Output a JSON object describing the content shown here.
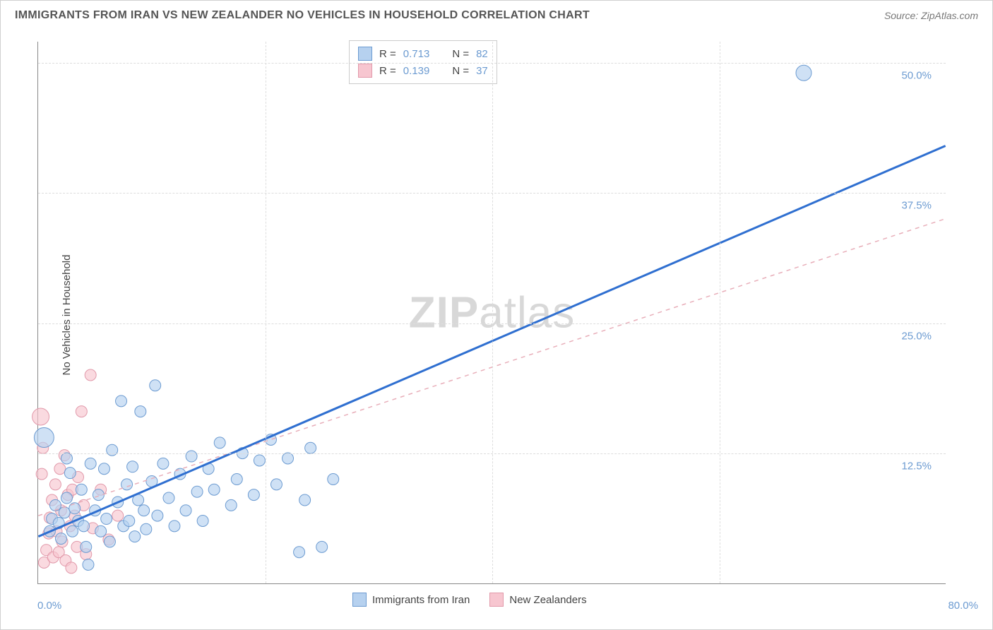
{
  "title": "IMMIGRANTS FROM IRAN VS NEW ZEALANDER NO VEHICLES IN HOUSEHOLD CORRELATION CHART",
  "source": "Source: ZipAtlas.com",
  "y_axis_label": "No Vehicles in Household",
  "watermark_a": "ZIP",
  "watermark_b": "atlas",
  "chart": {
    "type": "scatter",
    "background_color": "#ffffff",
    "grid_color": "#dddddd",
    "axis_color": "#888888",
    "xlim": [
      0,
      80
    ],
    "ylim": [
      0,
      52
    ],
    "x_origin_label": "0.0%",
    "x_max_label": "80.0%",
    "y_ticks": [
      {
        "v": 12.5,
        "label": "12.5%"
      },
      {
        "v": 25.0,
        "label": "25.0%"
      },
      {
        "v": 37.5,
        "label": "37.5%"
      },
      {
        "v": 50.0,
        "label": "50.0%"
      }
    ],
    "x_gridlines": [
      20,
      40,
      60
    ],
    "series_a": {
      "label": "Immigrants from Iran",
      "fill": "#b6d1ef",
      "stroke": "#6c9bd1",
      "line_color": "#2f6fd0",
      "line_width": 3,
      "line_style": "solid",
      "R": "0.713",
      "N": "82",
      "trend": {
        "x1": 0,
        "y1": 4.5,
        "x2": 80,
        "y2": 42.0
      },
      "points": [
        {
          "x": 67.5,
          "y": 49.0,
          "r": 11
        },
        {
          "x": 0.5,
          "y": 14.0,
          "r": 14
        },
        {
          "x": 1.0,
          "y": 5.0,
          "r": 8
        },
        {
          "x": 1.2,
          "y": 6.2,
          "r": 8
        },
        {
          "x": 1.5,
          "y": 7.5,
          "r": 8
        },
        {
          "x": 1.8,
          "y": 5.8,
          "r": 8
        },
        {
          "x": 2.0,
          "y": 4.3,
          "r": 8
        },
        {
          "x": 2.3,
          "y": 6.8,
          "r": 8
        },
        {
          "x": 2.5,
          "y": 8.2,
          "r": 8
        },
        {
          "x": 2.8,
          "y": 10.6,
          "r": 8
        },
        {
          "x": 2.5,
          "y": 12.0,
          "r": 8
        },
        {
          "x": 3.0,
          "y": 5.0,
          "r": 8
        },
        {
          "x": 3.2,
          "y": 7.2,
          "r": 8
        },
        {
          "x": 3.5,
          "y": 6.0,
          "r": 8
        },
        {
          "x": 3.8,
          "y": 9.0,
          "r": 8
        },
        {
          "x": 4.0,
          "y": 5.5,
          "r": 8
        },
        {
          "x": 4.2,
          "y": 3.5,
          "r": 8
        },
        {
          "x": 4.4,
          "y": 1.8,
          "r": 8
        },
        {
          "x": 4.6,
          "y": 11.5,
          "r": 8
        },
        {
          "x": 5.0,
          "y": 7.0,
          "r": 8
        },
        {
          "x": 5.3,
          "y": 8.5,
          "r": 8
        },
        {
          "x": 5.5,
          "y": 5.0,
          "r": 8
        },
        {
          "x": 5.8,
          "y": 11.0,
          "r": 8
        },
        {
          "x": 6.0,
          "y": 6.2,
          "r": 8
        },
        {
          "x": 6.3,
          "y": 4.0,
          "r": 8
        },
        {
          "x": 6.5,
          "y": 12.8,
          "r": 8
        },
        {
          "x": 7.0,
          "y": 7.8,
          "r": 8
        },
        {
          "x": 7.3,
          "y": 17.5,
          "r": 8
        },
        {
          "x": 7.5,
          "y": 5.5,
          "r": 8
        },
        {
          "x": 7.8,
          "y": 9.5,
          "r": 8
        },
        {
          "x": 8.0,
          "y": 6.0,
          "r": 8
        },
        {
          "x": 8.3,
          "y": 11.2,
          "r": 8
        },
        {
          "x": 8.5,
          "y": 4.5,
          "r": 8
        },
        {
          "x": 8.8,
          "y": 8.0,
          "r": 8
        },
        {
          "x": 9.0,
          "y": 16.5,
          "r": 8
        },
        {
          "x": 9.3,
          "y": 7.0,
          "r": 8
        },
        {
          "x": 9.5,
          "y": 5.2,
          "r": 8
        },
        {
          "x": 10.0,
          "y": 9.8,
          "r": 8
        },
        {
          "x": 10.3,
          "y": 19.0,
          "r": 8
        },
        {
          "x": 10.5,
          "y": 6.5,
          "r": 8
        },
        {
          "x": 11.0,
          "y": 11.5,
          "r": 8
        },
        {
          "x": 11.5,
          "y": 8.2,
          "r": 8
        },
        {
          "x": 12.0,
          "y": 5.5,
          "r": 8
        },
        {
          "x": 12.5,
          "y": 10.5,
          "r": 8
        },
        {
          "x": 13.0,
          "y": 7.0,
          "r": 8
        },
        {
          "x": 13.5,
          "y": 12.2,
          "r": 8
        },
        {
          "x": 14.0,
          "y": 8.8,
          "r": 8
        },
        {
          "x": 14.5,
          "y": 6.0,
          "r": 8
        },
        {
          "x": 15.0,
          "y": 11.0,
          "r": 8
        },
        {
          "x": 15.5,
          "y": 9.0,
          "r": 8
        },
        {
          "x": 16.0,
          "y": 13.5,
          "r": 8
        },
        {
          "x": 17.0,
          "y": 7.5,
          "r": 8
        },
        {
          "x": 17.5,
          "y": 10.0,
          "r": 8
        },
        {
          "x": 18.0,
          "y": 12.5,
          "r": 8
        },
        {
          "x": 19.0,
          "y": 8.5,
          "r": 8
        },
        {
          "x": 19.5,
          "y": 11.8,
          "r": 8
        },
        {
          "x": 20.5,
          "y": 13.8,
          "r": 8
        },
        {
          "x": 21.0,
          "y": 9.5,
          "r": 8
        },
        {
          "x": 22.0,
          "y": 12.0,
          "r": 8
        },
        {
          "x": 23.0,
          "y": 3.0,
          "r": 8
        },
        {
          "x": 23.5,
          "y": 8.0,
          "r": 8
        },
        {
          "x": 24.0,
          "y": 13.0,
          "r": 8
        },
        {
          "x": 25.0,
          "y": 3.5,
          "r": 8
        },
        {
          "x": 26.0,
          "y": 10.0,
          "r": 8
        }
      ]
    },
    "series_b": {
      "label": "New Zealanders",
      "fill": "#f7c6d0",
      "stroke": "#e199aa",
      "line_color": "#e8aeb9",
      "line_width": 1.5,
      "line_style": "dashed",
      "R": "0.139",
      "N": "37",
      "trend": {
        "x1": 0,
        "y1": 6.5,
        "x2": 80,
        "y2": 35.0
      },
      "points": [
        {
          "x": 0.2,
          "y": 16.0,
          "r": 12
        },
        {
          "x": 0.5,
          "y": 2.0,
          "r": 8
        },
        {
          "x": 0.7,
          "y": 3.2,
          "r": 8
        },
        {
          "x": 0.9,
          "y": 4.8,
          "r": 8
        },
        {
          "x": 1.0,
          "y": 6.3,
          "r": 8
        },
        {
          "x": 1.2,
          "y": 8.0,
          "r": 8
        },
        {
          "x": 1.3,
          "y": 2.5,
          "r": 8
        },
        {
          "x": 1.5,
          "y": 9.5,
          "r": 8
        },
        {
          "x": 1.6,
          "y": 5.0,
          "r": 8
        },
        {
          "x": 1.8,
          "y": 3.0,
          "r": 8
        },
        {
          "x": 1.9,
          "y": 11.0,
          "r": 8
        },
        {
          "x": 2.0,
          "y": 7.0,
          "r": 8
        },
        {
          "x": 2.1,
          "y": 4.0,
          "r": 8
        },
        {
          "x": 2.3,
          "y": 12.3,
          "r": 8
        },
        {
          "x": 2.4,
          "y": 2.2,
          "r": 8
        },
        {
          "x": 2.6,
          "y": 8.5,
          "r": 8
        },
        {
          "x": 2.8,
          "y": 5.5,
          "r": 8
        },
        {
          "x": 2.9,
          "y": 1.5,
          "r": 8
        },
        {
          "x": 3.0,
          "y": 9.0,
          "r": 8
        },
        {
          "x": 3.2,
          "y": 6.5,
          "r": 8
        },
        {
          "x": 3.4,
          "y": 3.5,
          "r": 8
        },
        {
          "x": 3.5,
          "y": 10.2,
          "r": 8
        },
        {
          "x": 3.8,
          "y": 16.5,
          "r": 8
        },
        {
          "x": 4.0,
          "y": 7.5,
          "r": 8
        },
        {
          "x": 4.2,
          "y": 2.8,
          "r": 8
        },
        {
          "x": 4.6,
          "y": 20.0,
          "r": 8
        },
        {
          "x": 4.8,
          "y": 5.3,
          "r": 8
        },
        {
          "x": 5.5,
          "y": 9.0,
          "r": 8
        },
        {
          "x": 6.2,
          "y": 4.2,
          "r": 8
        },
        {
          "x": 7.0,
          "y": 6.5,
          "r": 8
        },
        {
          "x": 0.3,
          "y": 10.5,
          "r": 8
        },
        {
          "x": 0.4,
          "y": 13.0,
          "r": 8
        }
      ]
    }
  },
  "legend_top": {
    "r_label": "R =",
    "n_label": "N ="
  },
  "legend_bottom": {
    "items": [
      "Immigrants from Iran",
      "New Zealanders"
    ]
  }
}
